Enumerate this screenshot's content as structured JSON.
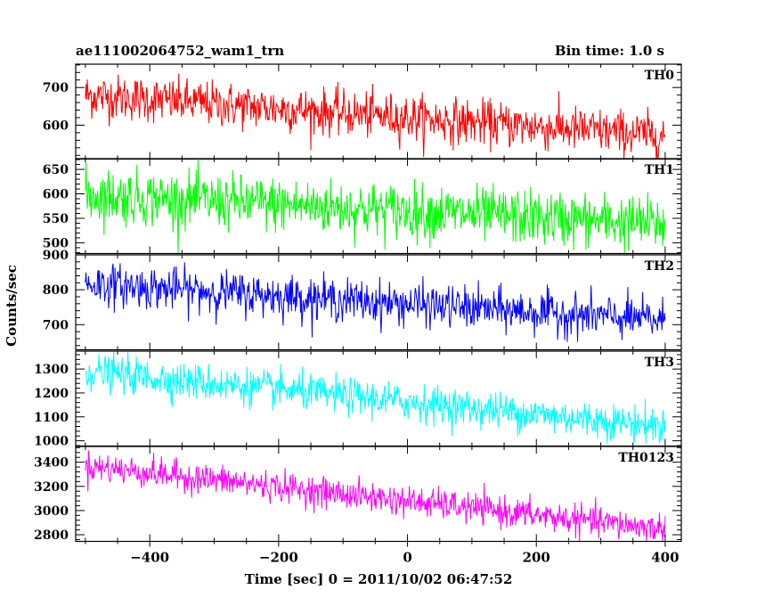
{
  "chart_data": {
    "type": "line",
    "title": "ae111002064752_wam1_trn",
    "subtitle": "Bin time: 1.0 s",
    "xlabel": "Time [sec] 0 = 2011/10/02 06:47:52",
    "ylabel": "Counts/sec",
    "xlim": [
      -515,
      425
    ],
    "x_ticks": [
      -400,
      -200,
      0,
      200,
      400
    ],
    "x_start": -500,
    "x_end": 400,
    "bin_time": 1.0,
    "grid": false,
    "panels": [
      {
        "name": "TH0",
        "color": "#ff0000",
        "ylim": [
          510,
          762
        ],
        "y_ticks": [
          600,
          700
        ],
        "trend_start": 680,
        "trend_end": 572,
        "noise": 30
      },
      {
        "name": "TH1",
        "color": "#00ff00",
        "ylim": [
          478,
          672
        ],
        "y_ticks": [
          500,
          550,
          600,
          650
        ],
        "trend_start": 598,
        "trend_end": 538,
        "noise": 28
      },
      {
        "name": "TH2",
        "color": "#0000ff",
        "ylim": [
          628,
          900
        ],
        "y_ticks": [
          700,
          800,
          900
        ],
        "trend_start": 818,
        "trend_end": 712,
        "noise": 30
      },
      {
        "name": "TH3",
        "color": "#00ffff",
        "ylim": [
          978,
          1375
        ],
        "y_ticks": [
          1000,
          1100,
          1200,
          1300
        ],
        "trend_start": 1290,
        "trend_end": 1060,
        "noise": 38
      },
      {
        "name": "TH0123",
        "color": "#ff00ff",
        "ylim": [
          2745,
          3530
        ],
        "y_ticks": [
          2800,
          3000,
          3200,
          3400
        ],
        "trend_start": 3370,
        "trend_end": 2845,
        "noise": 62
      }
    ]
  }
}
